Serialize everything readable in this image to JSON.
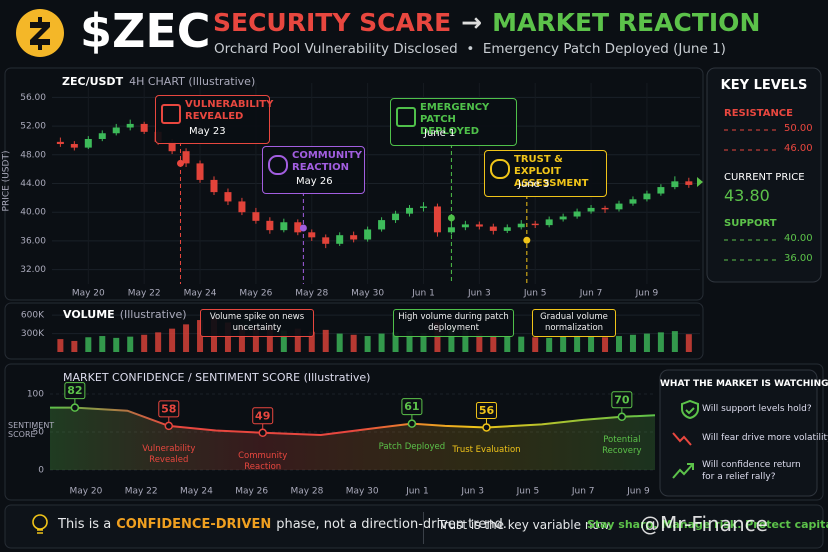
{
  "header": {
    "ticker": "$ZEC",
    "title_left": "SECURITY SCARE",
    "title_arrow": "→",
    "title_right": "MARKET REACTION",
    "subtitle": "Orchard Pool Vulnerability Disclosed  •  Emergency Patch Deployed (June 1)"
  },
  "chart_data": [
    {
      "type": "candlestick",
      "title": "ZEC/USDT",
      "subtitle": "4H CHART (Illustrative)",
      "y_label": "PRICE (USDT)",
      "up_color": "#3dbb5a",
      "down_color": "#e2433a",
      "grid": true,
      "xlim": [
        -1.3,
        21.9
      ],
      "ylim": [
        30,
        58
      ],
      "yticks": [
        {
          "value": 32,
          "label": "32.00"
        },
        {
          "value": 36,
          "label": "36.00"
        },
        {
          "value": 40,
          "label": "40.00"
        },
        {
          "value": 44,
          "label": "44.00"
        },
        {
          "value": 48,
          "label": "48.00"
        },
        {
          "value": 52,
          "label": "52.00"
        },
        {
          "value": 56,
          "label": "56.00"
        }
      ],
      "xticks": [
        {
          "value": 0,
          "label": "May 20"
        },
        {
          "value": 2,
          "label": "May 22"
        },
        {
          "value": 4,
          "label": "May 24"
        },
        {
          "value": 6,
          "label": "May 26"
        },
        {
          "value": 8,
          "label": "May 28"
        },
        {
          "value": 10,
          "label": "May 30"
        },
        {
          "value": 12,
          "label": "Jun 1"
        },
        {
          "value": 14,
          "label": "Jun 3"
        },
        {
          "value": 16,
          "label": "Jun 5"
        },
        {
          "value": 18,
          "label": "Jun 7"
        },
        {
          "value": 20,
          "label": "Jun 9"
        }
      ],
      "x": [
        -1,
        -0.5,
        0,
        0.5,
        1,
        1.5,
        2,
        2.5,
        3,
        3.5,
        4,
        4.5,
        5,
        5.5,
        6,
        6.5,
        7,
        7.5,
        8,
        8.5,
        9,
        9.5,
        10,
        10.5,
        11,
        11.5,
        12,
        12.5,
        13,
        13.5,
        14,
        14.5,
        15,
        15.5,
        16,
        16.5,
        17,
        17.5,
        18,
        18.5,
        19,
        19.5,
        20,
        20.5,
        21,
        21.5
      ],
      "ohlc": [
        [
          49.8,
          50.4,
          49.1,
          49.5
        ],
        [
          49.5,
          49.9,
          48.6,
          49.0
        ],
        [
          49.0,
          50.6,
          48.8,
          50.2
        ],
        [
          50.2,
          51.4,
          49.9,
          51.0
        ],
        [
          51.0,
          52.3,
          50.7,
          51.8
        ],
        [
          51.8,
          52.9,
          51.4,
          52.3
        ],
        [
          52.3,
          52.6,
          50.9,
          51.2
        ],
        [
          51.2,
          51.5,
          49.4,
          49.8
        ],
        [
          49.8,
          50.2,
          48.1,
          48.5
        ],
        [
          48.5,
          48.9,
          46.3,
          46.8
        ],
        [
          46.8,
          47.2,
          44.1,
          44.5
        ],
        [
          44.5,
          45.0,
          42.4,
          42.8
        ],
        [
          42.8,
          43.3,
          41.0,
          41.5
        ],
        [
          41.5,
          42.0,
          39.6,
          40.0
        ],
        [
          40.0,
          40.6,
          38.4,
          38.8
        ],
        [
          38.8,
          39.3,
          37.0,
          37.5
        ],
        [
          37.5,
          39.1,
          37.2,
          38.6
        ],
        [
          38.6,
          39.0,
          36.8,
          37.2
        ],
        [
          37.2,
          37.6,
          36.0,
          36.5
        ],
        [
          36.5,
          36.9,
          35.0,
          35.6
        ],
        [
          35.6,
          37.2,
          35.3,
          36.8
        ],
        [
          36.8,
          37.3,
          35.8,
          36.2
        ],
        [
          36.2,
          38.0,
          35.9,
          37.6
        ],
        [
          37.6,
          39.3,
          37.3,
          38.9
        ],
        [
          38.9,
          40.2,
          38.5,
          39.8
        ],
        [
          39.8,
          41.0,
          39.4,
          40.6
        ],
        [
          40.6,
          41.4,
          40.1,
          40.8
        ],
        [
          40.8,
          41.2,
          36.6,
          37.2
        ],
        [
          37.2,
          38.3,
          36.9,
          37.9
        ],
        [
          37.9,
          38.8,
          37.5,
          38.3
        ],
        [
          38.3,
          38.7,
          37.6,
          38.0
        ],
        [
          38.0,
          38.4,
          36.9,
          37.4
        ],
        [
          37.4,
          38.3,
          37.1,
          37.9
        ],
        [
          37.9,
          38.9,
          37.6,
          38.4
        ],
        [
          38.4,
          38.8,
          37.8,
          38.2
        ],
        [
          38.2,
          39.4,
          37.9,
          39.0
        ],
        [
          39.0,
          39.8,
          38.7,
          39.4
        ],
        [
          39.4,
          40.5,
          39.1,
          40.1
        ],
        [
          40.1,
          41.0,
          39.8,
          40.6
        ],
        [
          40.6,
          40.9,
          39.9,
          40.4
        ],
        [
          40.4,
          41.6,
          40.1,
          41.2
        ],
        [
          41.2,
          42.2,
          40.9,
          41.8
        ],
        [
          41.8,
          43.0,
          41.5,
          42.6
        ],
        [
          42.6,
          43.9,
          42.3,
          43.5
        ],
        [
          43.5,
          45.0,
          43.2,
          44.3
        ],
        [
          44.3,
          44.8,
          43.4,
          43.8
        ]
      ],
      "events": [
        {
          "title": "VULNERABILITY REVEALED",
          "date": "May 23",
          "x": 3.3,
          "price": 46.8,
          "color": "#e8473f"
        },
        {
          "title": "COMMUNITY REACTION",
          "date": "May 26",
          "x": 7.7,
          "price": 37.8,
          "color": "#a25ee0"
        },
        {
          "title": "EMERGENCY PATCH DEPLOYED",
          "date": "June 1",
          "x": 13,
          "price": 39.2,
          "color": "#4fc04a"
        },
        {
          "title": "TRUST & EXPLOIT ASSESSMENT",
          "date": "June 3",
          "x": 15.7,
          "price": 36.1,
          "color": "#f0c419"
        }
      ]
    },
    {
      "type": "bar",
      "title": "VOLUME",
      "subtitle": "(Illustrative)",
      "xlim": [
        -1.3,
        21.9
      ],
      "ylim": [
        0,
        700000
      ],
      "yticks": [
        {
          "value": 300000,
          "label": "300K"
        },
        {
          "value": 600000,
          "label": "600K"
        }
      ],
      "x": [
        -1,
        -0.5,
        0,
        0.5,
        1,
        1.5,
        2,
        2.5,
        3,
        3.5,
        4,
        4.5,
        5,
        5.5,
        6,
        6.5,
        7,
        7.5,
        8,
        8.5,
        9,
        9.5,
        10,
        10.5,
        11,
        11.5,
        12,
        12.5,
        13,
        13.5,
        14,
        14.5,
        15,
        15.5,
        16,
        16.5,
        17,
        17.5,
        18,
        18.5,
        19,
        19.5,
        20,
        20.5,
        21,
        21.5
      ],
      "values": [
        210000,
        180000,
        240000,
        260000,
        230000,
        250000,
        280000,
        320000,
        380000,
        450000,
        520000,
        560000,
        480000,
        430000,
        400000,
        420000,
        350000,
        380000,
        330000,
        360000,
        300000,
        280000,
        260000,
        300000,
        320000,
        340000,
        310000,
        480000,
        420000,
        350000,
        300000,
        280000,
        260000,
        250000,
        240000,
        230000,
        250000,
        270000,
        260000,
        240000,
        260000,
        280000,
        300000,
        320000,
        340000,
        290000
      ],
      "annotations": [
        {
          "text": "Volume spike on news uncertainty",
          "color": "#e8473f"
        },
        {
          "text": "High volume during patch deployment",
          "color": "#4fc04a"
        },
        {
          "text": "Gradual volume normalization",
          "color": "#f0c419"
        }
      ]
    },
    {
      "type": "line",
      "title": "MARKET CONFIDENCE / SENTIMENT SCORE (Illustrative)",
      "y_label": "SENTIMENT SCORE",
      "xlim": [
        -1.3,
        20.6
      ],
      "ylim": [
        0,
        100
      ],
      "yticks": [
        0,
        50,
        100
      ],
      "xticks": [
        {
          "value": 0,
          "label": "May 20"
        },
        {
          "value": 2,
          "label": "May 22"
        },
        {
          "value": 4,
          "label": "May 24"
        },
        {
          "value": 6,
          "label": "May 26"
        },
        {
          "value": 8,
          "label": "May 28"
        },
        {
          "value": 10,
          "label": "May 30"
        },
        {
          "value": 12,
          "label": "Jun 1"
        },
        {
          "value": 14,
          "label": "Jun 3"
        },
        {
          "value": 16,
          "label": "Jun 5"
        },
        {
          "value": 18,
          "label": "Jun 7"
        },
        {
          "value": 20,
          "label": "Jun 9"
        }
      ],
      "x": [
        -1.3,
        -0.4,
        1.5,
        3,
        4.7,
        6.4,
        8.5,
        10,
        11.8,
        13,
        14.5,
        16.5,
        18,
        19.4,
        20.6
      ],
      "values": [
        82,
        82,
        78,
        58,
        52,
        49,
        46,
        53,
        61,
        58,
        56,
        60,
        66,
        70,
        72
      ],
      "captions": [
        null,
        null,
        null,
        "Vulnerability Revealed",
        null,
        "Community Reaction",
        null,
        null,
        "Patch Deployed",
        null,
        "Trust Evaluation",
        null,
        null,
        "Potential Recovery",
        null
      ],
      "label_colors": [
        null,
        "#5cc24a",
        null,
        "#e8473f",
        null,
        "#e8473f",
        null,
        null,
        "#5cc24a",
        null,
        "#f0c419",
        null,
        null,
        "#5cc24a",
        null
      ]
    }
  ],
  "key_levels": {
    "title": "KEY LEVELS",
    "resistance": {
      "label": "RESISTANCE",
      "levels": [
        "50.00",
        "46.00"
      ]
    },
    "current": {
      "label": "CURRENT PRICE",
      "value": "43.80"
    },
    "support": {
      "label": "SUPPORT",
      "levels": [
        "40.00",
        "36.00"
      ]
    }
  },
  "watching": {
    "title": "WHAT THE MARKET IS WATCHING",
    "items": [
      "Will support levels hold?",
      "Will fear drive more volatility?",
      "Will confidence return for a relief rally?"
    ]
  },
  "footer": {
    "lead": "This is a",
    "highlight": "CONFIDENCE-DRIVEN",
    "rest": "phase, not a direction-driven trend.",
    "middle": "Trust is the key variable now.",
    "right": "Stay sharp. Manage risk. Protect capital.",
    "watermark": "@Mr-Finance"
  }
}
